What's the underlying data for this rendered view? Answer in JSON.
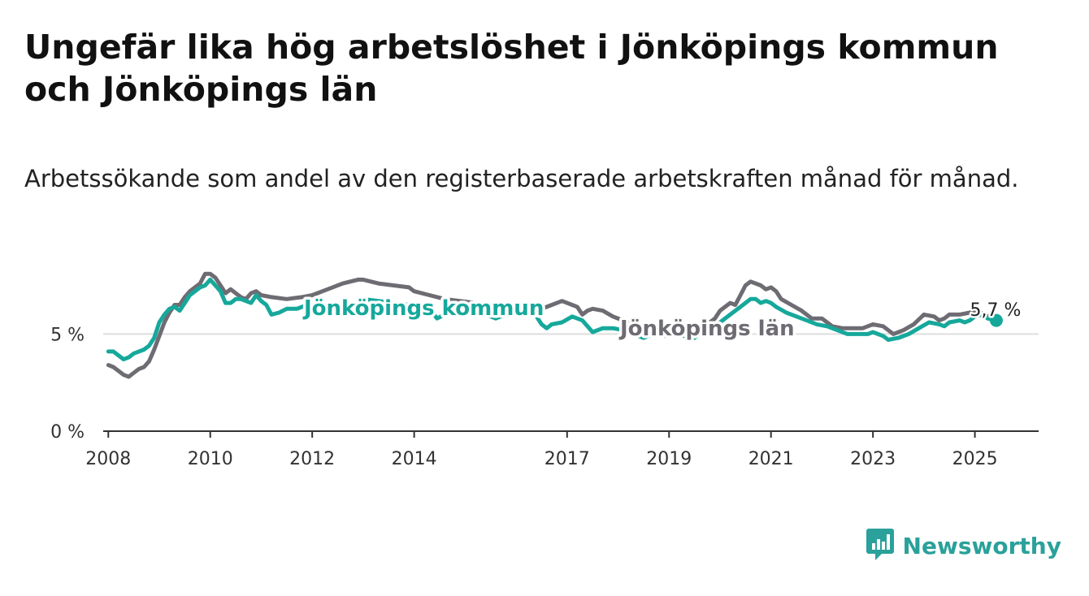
{
  "title": "Ungefär lika hög arbetslöshet i Jönköpings kommun och Jönköpings län",
  "subtitle": "Arbetssökande som andel av den registerbaserade arbetskraften månad för månad.",
  "brand": "Newsworthy",
  "colors": {
    "kommun": "#16a89b",
    "lan": "#6e6c72",
    "grid": "#dedede",
    "axis": "#333333"
  },
  "chart_data": {
    "type": "line",
    "x_unit": "year",
    "xlim": [
      2007.9,
      2026.25
    ],
    "ylim": [
      0,
      8.4
    ],
    "x_ticks": [
      {
        "value": 2008,
        "label": "2008"
      },
      {
        "value": 2010,
        "label": "2010"
      },
      {
        "value": 2012,
        "label": "2012"
      },
      {
        "value": 2014,
        "label": "2014"
      },
      {
        "value": 2017,
        "label": "2017"
      },
      {
        "value": 2019,
        "label": "2019"
      },
      {
        "value": 2021,
        "label": "2021"
      },
      {
        "value": 2023,
        "label": "2023"
      },
      {
        "value": 2025,
        "label": "2025"
      }
    ],
    "y_ticks": [
      {
        "value": 0,
        "label": "0 %"
      },
      {
        "value": 5,
        "label": "5 %"
      }
    ],
    "end_label": "5,7 %",
    "series": [
      {
        "key": "lan",
        "name": "Jönköpings län",
        "points": [
          [
            2008.0,
            3.4
          ],
          [
            2008.1,
            3.3
          ],
          [
            2008.2,
            3.1
          ],
          [
            2008.3,
            2.9
          ],
          [
            2008.4,
            2.8
          ],
          [
            2008.5,
            3.0
          ],
          [
            2008.6,
            3.2
          ],
          [
            2008.7,
            3.3
          ],
          [
            2008.8,
            3.6
          ],
          [
            2008.9,
            4.2
          ],
          [
            2009.0,
            4.9
          ],
          [
            2009.1,
            5.6
          ],
          [
            2009.2,
            6.1
          ],
          [
            2009.3,
            6.5
          ],
          [
            2009.4,
            6.5
          ],
          [
            2009.5,
            6.9
          ],
          [
            2009.6,
            7.2
          ],
          [
            2009.7,
            7.4
          ],
          [
            2009.8,
            7.6
          ],
          [
            2009.9,
            8.1
          ],
          [
            2010.0,
            8.1
          ],
          [
            2010.1,
            7.9
          ],
          [
            2010.2,
            7.5
          ],
          [
            2010.3,
            7.1
          ],
          [
            2010.4,
            7.3
          ],
          [
            2010.5,
            7.1
          ],
          [
            2010.6,
            6.9
          ],
          [
            2010.7,
            6.8
          ],
          [
            2010.8,
            7.1
          ],
          [
            2010.9,
            7.2
          ],
          [
            2011.0,
            7.0
          ],
          [
            2011.2,
            6.9
          ],
          [
            2011.5,
            6.8
          ],
          [
            2011.8,
            6.9
          ],
          [
            2012.0,
            7.0
          ],
          [
            2012.3,
            7.3
          ],
          [
            2012.6,
            7.6
          ],
          [
            2012.9,
            7.8
          ],
          [
            2013.0,
            7.8
          ],
          [
            2013.3,
            7.6
          ],
          [
            2013.6,
            7.5
          ],
          [
            2013.9,
            7.4
          ],
          [
            2014.0,
            7.2
          ],
          [
            2014.3,
            7.0
          ],
          [
            2014.6,
            6.8
          ],
          [
            2014.9,
            6.7
          ],
          [
            2015.2,
            6.6
          ],
          [
            2015.5,
            6.5
          ],
          [
            2015.8,
            6.4
          ],
          [
            2016.0,
            6.3
          ],
          [
            2016.3,
            6.2
          ],
          [
            2016.5,
            6.3
          ],
          [
            2016.7,
            6.5
          ],
          [
            2016.8,
            6.6
          ],
          [
            2016.9,
            6.7
          ],
          [
            2017.0,
            6.6
          ],
          [
            2017.1,
            6.5
          ],
          [
            2017.2,
            6.4
          ],
          [
            2017.3,
            6.0
          ],
          [
            2017.4,
            6.2
          ],
          [
            2017.5,
            6.3
          ],
          [
            2017.7,
            6.2
          ],
          [
            2017.9,
            5.9
          ],
          [
            2018.2,
            5.6
          ],
          [
            2018.5,
            5.3
          ],
          [
            2018.8,
            5.1
          ],
          [
            2019.0,
            5.0
          ],
          [
            2019.2,
            5.0
          ],
          [
            2019.4,
            5.1
          ],
          [
            2019.6,
            5.3
          ],
          [
            2019.8,
            5.6
          ],
          [
            2019.9,
            5.8
          ],
          [
            2020.0,
            6.2
          ],
          [
            2020.2,
            6.6
          ],
          [
            2020.3,
            6.5
          ],
          [
            2020.4,
            7.0
          ],
          [
            2020.5,
            7.5
          ],
          [
            2020.6,
            7.7
          ],
          [
            2020.7,
            7.6
          ],
          [
            2020.8,
            7.5
          ],
          [
            2020.9,
            7.3
          ],
          [
            2021.0,
            7.4
          ],
          [
            2021.1,
            7.2
          ],
          [
            2021.2,
            6.8
          ],
          [
            2021.4,
            6.5
          ],
          [
            2021.6,
            6.2
          ],
          [
            2021.8,
            5.8
          ],
          [
            2022.0,
            5.8
          ],
          [
            2022.2,
            5.4
          ],
          [
            2022.4,
            5.3
          ],
          [
            2022.6,
            5.3
          ],
          [
            2022.8,
            5.3
          ],
          [
            2023.0,
            5.5
          ],
          [
            2023.2,
            5.4
          ],
          [
            2023.4,
            5.0
          ],
          [
            2023.6,
            5.2
          ],
          [
            2023.8,
            5.5
          ],
          [
            2024.0,
            6.0
          ],
          [
            2024.2,
            5.9
          ],
          [
            2024.3,
            5.7
          ],
          [
            2024.4,
            5.8
          ],
          [
            2024.5,
            6.0
          ],
          [
            2024.7,
            6.0
          ],
          [
            2024.9,
            6.1
          ],
          [
            2025.0,
            6.2
          ],
          [
            2025.2,
            6.0
          ],
          [
            2025.3,
            5.8
          ],
          [
            2025.42,
            5.7
          ]
        ]
      },
      {
        "key": "kommun",
        "name": "Jönköpings kommun",
        "points": [
          [
            2008.0,
            4.1
          ],
          [
            2008.1,
            4.1
          ],
          [
            2008.2,
            3.9
          ],
          [
            2008.3,
            3.7
          ],
          [
            2008.4,
            3.8
          ],
          [
            2008.5,
            4.0
          ],
          [
            2008.6,
            4.1
          ],
          [
            2008.7,
            4.2
          ],
          [
            2008.8,
            4.4
          ],
          [
            2008.9,
            4.8
          ],
          [
            2009.0,
            5.6
          ],
          [
            2009.1,
            6.0
          ],
          [
            2009.2,
            6.3
          ],
          [
            2009.3,
            6.4
          ],
          [
            2009.4,
            6.2
          ],
          [
            2009.5,
            6.6
          ],
          [
            2009.6,
            7.0
          ],
          [
            2009.7,
            7.2
          ],
          [
            2009.8,
            7.4
          ],
          [
            2009.9,
            7.5
          ],
          [
            2010.0,
            7.8
          ],
          [
            2010.1,
            7.5
          ],
          [
            2010.2,
            7.2
          ],
          [
            2010.3,
            6.6
          ],
          [
            2010.4,
            6.6
          ],
          [
            2010.5,
            6.8
          ],
          [
            2010.6,
            6.8
          ],
          [
            2010.7,
            6.7
          ],
          [
            2010.8,
            6.6
          ],
          [
            2010.9,
            7.0
          ],
          [
            2011.0,
            6.7
          ],
          [
            2011.1,
            6.5
          ],
          [
            2011.2,
            6.0
          ],
          [
            2011.35,
            6.1
          ],
          [
            2011.5,
            6.3
          ],
          [
            2011.7,
            6.3
          ],
          [
            2011.9,
            6.5
          ],
          [
            2012.1,
            6.3
          ],
          [
            2012.3,
            6.0
          ],
          [
            2012.5,
            6.3
          ],
          [
            2012.7,
            6.5
          ],
          [
            2012.9,
            6.6
          ],
          [
            2013.0,
            6.8
          ],
          [
            2013.3,
            6.7
          ],
          [
            2013.6,
            6.6
          ],
          [
            2013.9,
            6.5
          ],
          [
            2014.1,
            6.5
          ],
          [
            2014.3,
            6.3
          ],
          [
            2014.45,
            5.8
          ],
          [
            2014.6,
            6.0
          ],
          [
            2014.8,
            6.1
          ],
          [
            2015.0,
            6.3
          ],
          [
            2015.2,
            6.2
          ],
          [
            2015.4,
            6.0
          ],
          [
            2015.6,
            5.8
          ],
          [
            2015.8,
            6.0
          ],
          [
            2016.0,
            6.1
          ],
          [
            2016.3,
            6.1
          ],
          [
            2016.4,
            5.9
          ],
          [
            2016.5,
            5.5
          ],
          [
            2016.6,
            5.3
          ],
          [
            2016.7,
            5.5
          ],
          [
            2016.9,
            5.6
          ],
          [
            2017.1,
            5.9
          ],
          [
            2017.3,
            5.7
          ],
          [
            2017.4,
            5.4
          ],
          [
            2017.5,
            5.1
          ],
          [
            2017.7,
            5.3
          ],
          [
            2017.9,
            5.3
          ],
          [
            2018.1,
            5.2
          ],
          [
            2018.3,
            5.0
          ],
          [
            2018.5,
            4.8
          ],
          [
            2018.6,
            4.9
          ],
          [
            2018.8,
            5.0
          ],
          [
            2018.9,
            4.9
          ],
          [
            2019.1,
            5.0
          ],
          [
            2019.3,
            4.9
          ],
          [
            2019.5,
            4.8
          ],
          [
            2019.6,
            5.0
          ],
          [
            2019.8,
            5.3
          ],
          [
            2020.0,
            5.6
          ],
          [
            2020.2,
            6.0
          ],
          [
            2020.4,
            6.4
          ],
          [
            2020.5,
            6.6
          ],
          [
            2020.6,
            6.8
          ],
          [
            2020.7,
            6.8
          ],
          [
            2020.8,
            6.6
          ],
          [
            2020.9,
            6.7
          ],
          [
            2021.0,
            6.6
          ],
          [
            2021.1,
            6.4
          ],
          [
            2021.3,
            6.1
          ],
          [
            2021.5,
            5.9
          ],
          [
            2021.7,
            5.7
          ],
          [
            2021.9,
            5.5
          ],
          [
            2022.1,
            5.4
          ],
          [
            2022.3,
            5.2
          ],
          [
            2022.5,
            5.0
          ],
          [
            2022.7,
            5.0
          ],
          [
            2022.9,
            5.0
          ],
          [
            2023.0,
            5.1
          ],
          [
            2023.2,
            4.9
          ],
          [
            2023.3,
            4.7
          ],
          [
            2023.5,
            4.8
          ],
          [
            2023.7,
            5.0
          ],
          [
            2023.9,
            5.3
          ],
          [
            2024.1,
            5.6
          ],
          [
            2024.3,
            5.5
          ],
          [
            2024.4,
            5.4
          ],
          [
            2024.5,
            5.6
          ],
          [
            2024.7,
            5.7
          ],
          [
            2024.8,
            5.6
          ],
          [
            2024.9,
            5.7
          ],
          [
            2025.0,
            5.9
          ],
          [
            2025.1,
            6.0
          ],
          [
            2025.25,
            5.8
          ],
          [
            2025.42,
            5.7
          ]
        ]
      }
    ]
  }
}
